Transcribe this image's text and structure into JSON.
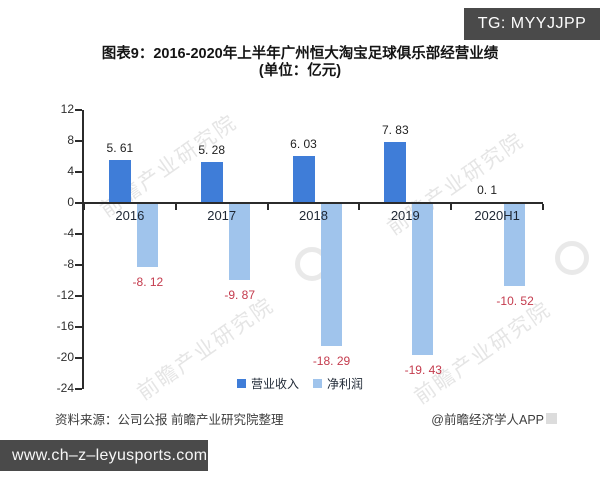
{
  "badge": {
    "text": "TG: MYYJJPP"
  },
  "title": {
    "line1": "图表9：2016-2020年上半年广州恒大淘宝足球俱乐部经营业绩",
    "line2": "(单位：亿元)"
  },
  "chart_data": {
    "type": "bar",
    "title": "图表9：2016-2020年上半年广州恒大淘宝足球俱乐部经营业绩",
    "unit_label": "(单位：亿元)",
    "categories": [
      "2016",
      "2017",
      "2018",
      "2019",
      "2020H1"
    ],
    "series": [
      {
        "name": "营业收入",
        "values": [
          5.61,
          5.28,
          6.03,
          7.83,
          0.1
        ],
        "labels": [
          "5. 61",
          "5. 28",
          "6. 03",
          "7. 83",
          "0. 1"
        ],
        "color": "#3f7dd8",
        "label_color": "#1f1f1f"
      },
      {
        "name": "净利润",
        "values": [
          -8.12,
          -9.87,
          -18.29,
          -19.43,
          -10.52
        ],
        "labels": [
          "-8. 12",
          "-9. 87",
          "-18. 29",
          "-19. 43",
          "-10. 52"
        ],
        "color": "#a0c4ec",
        "label_color": "#c43b4d"
      }
    ],
    "ylim": [
      -24,
      12
    ],
    "yticks": [
      12,
      8,
      4,
      0,
      -4,
      -8,
      -12,
      -16,
      -20,
      -24
    ],
    "grid": false,
    "legend_position": "bottom-center",
    "axis_color": "#2b2b2b"
  },
  "watermark": {
    "text": "前瞻产业研究院"
  },
  "source": {
    "left": "资料来源：公司公报 前瞻产业研究院整理",
    "right": "@前瞻经济学人APP"
  },
  "footer": {
    "url": "www.ch–z–leyusports.com"
  }
}
